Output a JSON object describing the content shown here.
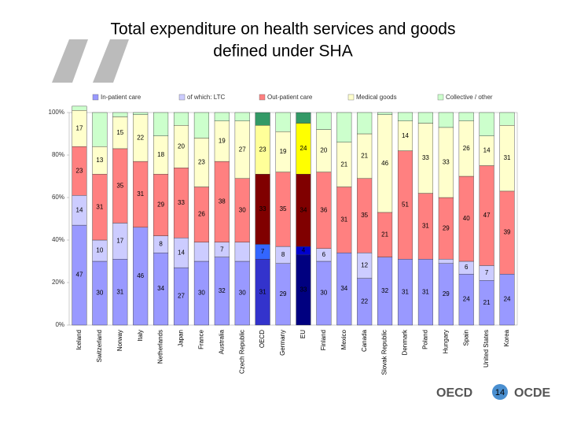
{
  "chart_data": {
    "type": "stacked-bar",
    "title": [
      "Total expenditure on health services and goods",
      "defined under SHA"
    ],
    "categories": [
      "Iceland",
      "Switzerland",
      "Norway",
      "Italy",
      "Netherlands",
      "Japan",
      "France",
      "Australia",
      "Czech Republic",
      "OECD",
      "Germany",
      "EU",
      "Finland",
      "Mexico",
      "Canada",
      "Slovak Republic",
      "Denmark",
      "Poland",
      "Hungary",
      "Spain",
      "United States",
      "Korea"
    ],
    "highlight": [
      9,
      11
    ],
    "ylim": [
      0,
      100
    ],
    "yticks": [
      {
        "value": 0,
        "label": "0%"
      },
      {
        "value": 20,
        "label": "20%"
      },
      {
        "value": 40,
        "label": "40%"
      },
      {
        "value": 60,
        "label": "60%"
      },
      {
        "value": 80,
        "label": "80%"
      },
      {
        "value": 100,
        "label": "100%"
      }
    ],
    "series": [
      {
        "name": "In-patient care",
        "color": "#9999ff",
        "highlight_colors": [
          "#3333cc",
          "#000080"
        ],
        "values": [
          47,
          30,
          31,
          46,
          34,
          27,
          30,
          32,
          30,
          31,
          29,
          33,
          30,
          34,
          22,
          32,
          31,
          31,
          29,
          24,
          21,
          24
        ],
        "value_labels": [
          "47",
          "30",
          "31",
          "46",
          "34",
          "27",
          "30",
          "32",
          "30",
          "31",
          "29",
          "33",
          "30",
          "34",
          "22",
          "32",
          "31",
          "31",
          "29",
          "24",
          "21",
          "24"
        ]
      },
      {
        "name": "of which: LTC",
        "color": "#ccccff",
        "highlight_colors": [
          "#3366ff",
          "#0000cc"
        ],
        "values": [
          14,
          10,
          17,
          0,
          8,
          14,
          9,
          7,
          9,
          7,
          8,
          4,
          6,
          0,
          12,
          0,
          0,
          0,
          2,
          6,
          7,
          0
        ],
        "value_labels": [
          "14",
          "10",
          "17",
          null,
          "8",
          "14",
          null,
          "7",
          null,
          "7",
          "8",
          "4",
          "6",
          null,
          "12",
          null,
          null,
          null,
          null,
          "6",
          "7",
          null
        ]
      },
      {
        "name": "Out-patient care",
        "color": "#ff8080",
        "highlight_colors": [
          "#800000",
          "#800000"
        ],
        "values": [
          23,
          31,
          35,
          31,
          29,
          33,
          26,
          38,
          30,
          33,
          35,
          34,
          36,
          31,
          35,
          21,
          51,
          31,
          29,
          40,
          47,
          39
        ],
        "value_labels": [
          "23",
          "31",
          "35",
          "31",
          "29",
          "33",
          "26",
          "38",
          "30",
          "33",
          "35",
          "34",
          "36",
          "31",
          "35",
          "21",
          "51",
          "31",
          "29",
          "40",
          "47",
          "39"
        ]
      },
      {
        "name": "Medical goods",
        "color": "#ffffcc",
        "highlight_colors": [
          "#ffff99",
          "#ffff00"
        ],
        "values": [
          17,
          13,
          15,
          22,
          18,
          20,
          23,
          19,
          27,
          23,
          19,
          24,
          20,
          21,
          21,
          46,
          14,
          33,
          33,
          26,
          14,
          31
        ],
        "value_labels": [
          "17",
          "13",
          "15",
          "22",
          "18",
          "20",
          "23",
          "19",
          "27",
          "23",
          "19",
          "24",
          "20",
          "21",
          "21",
          "46",
          "14",
          "33",
          "33",
          "26",
          "14",
          "31"
        ]
      },
      {
        "name": "Collective / other",
        "color": "#ccffcc",
        "highlight_colors": [
          "#339966",
          "#339966"
        ],
        "values": [
          2,
          16,
          2,
          1,
          11,
          6,
          12,
          4,
          4,
          6,
          9,
          5,
          8,
          14,
          10,
          1,
          4,
          5,
          7,
          4,
          11,
          6
        ]
      }
    ]
  },
  "footer": {
    "logo_left": "OECD",
    "page_number": "14",
    "logo_right": "OCDE"
  }
}
